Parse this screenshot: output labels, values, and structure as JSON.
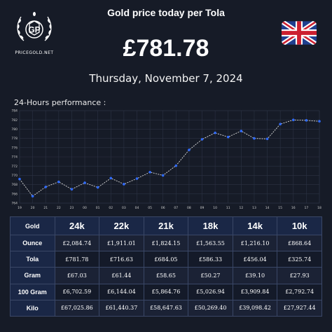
{
  "header": {
    "logo_mark": "GP",
    "logo_text": "PRICEGOLD.NET",
    "title": "Gold price today per Tola",
    "price": "£781.78",
    "date": "Thursday, November 7, 2024",
    "flag_icon": "uk-flag-icon"
  },
  "performance_label": "24-Hours performance :",
  "chart_data": {
    "type": "line",
    "x": [
      "19",
      "20",
      "21",
      "22",
      "23",
      "00",
      "01",
      "02",
      "03",
      "04",
      "05",
      "06",
      "07",
      "08",
      "09",
      "10",
      "11",
      "12",
      "13",
      "14",
      "15",
      "16",
      "17",
      "18"
    ],
    "values": [
      769.2,
      765.5,
      767.5,
      768.6,
      767.0,
      768.4,
      767.4,
      769.4,
      768.1,
      769.3,
      770.7,
      770.0,
      772.1,
      775.5,
      777.8,
      779.2,
      778.3,
      779.6,
      778.0,
      777.9,
      781.1,
      782.0,
      781.9,
      781.7
    ],
    "yticks": [
      764,
      766,
      768,
      770,
      772,
      774,
      776,
      778,
      780,
      782,
      784
    ],
    "ylim": [
      764,
      784
    ],
    "grid": true,
    "line_color": "#d9d9d9",
    "marker_color": "#2f6bff"
  },
  "table": {
    "corner": "Gold",
    "columns": [
      "24k",
      "22k",
      "21k",
      "18k",
      "14k",
      "10k"
    ],
    "rows": [
      {
        "label": "Ounce",
        "values": [
          "£2,084.74",
          "£1,911.01",
          "£1,824.15",
          "£1,563.55",
          "£1,216.10",
          "£868.64"
        ]
      },
      {
        "label": "Tola",
        "values": [
          "£781.78",
          "£716.63",
          "£684.05",
          "£586.33",
          "£456.04",
          "£325.74"
        ]
      },
      {
        "label": "Gram",
        "values": [
          "£67.03",
          "£61.44",
          "£58.65",
          "£50.27",
          "£39.10",
          "£27.93"
        ]
      },
      {
        "label": "100 Gram",
        "values": [
          "£6,702.59",
          "£6,144.04",
          "£5,864.76",
          "£5,026.94",
          "£3,909.84",
          "£2,792.74"
        ]
      },
      {
        "label": "Kilo",
        "values": [
          "£67,025.86",
          "£61,440.37",
          "£58,647.63",
          "£50,269.40",
          "£39,098.42",
          "£27,927.44"
        ]
      }
    ]
  },
  "colors": {
    "background": "#161b27",
    "header_cell": "#1a2746",
    "border": "#3a4766"
  }
}
